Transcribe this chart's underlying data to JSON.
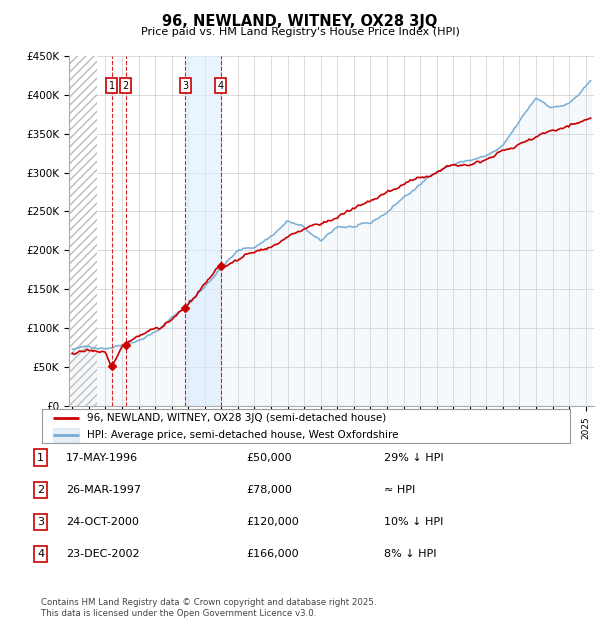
{
  "title": "96, NEWLAND, WITNEY, OX28 3JQ",
  "subtitle": "Price paid vs. HM Land Registry's House Price Index (HPI)",
  "ylim": [
    0,
    450000
  ],
  "yticks": [
    0,
    50000,
    100000,
    150000,
    200000,
    250000,
    300000,
    350000,
    400000,
    450000
  ],
  "ytick_labels": [
    "£0",
    "£50K",
    "£100K",
    "£150K",
    "£200K",
    "£250K",
    "£300K",
    "£350K",
    "£400K",
    "£450K"
  ],
  "hatch_end_year": 1995.5,
  "xmin": 1993.8,
  "xmax": 2025.5,
  "transactions": [
    {
      "num": 1,
      "date_str": "17-MAY-1996",
      "date_x": 1996.37,
      "price": 50000,
      "label": "29% ↓ HPI"
    },
    {
      "num": 2,
      "date_str": "26-MAR-1997",
      "date_x": 1997.23,
      "price": 78000,
      "label": "≈ HPI"
    },
    {
      "num": 3,
      "date_str": "24-OCT-2000",
      "date_x": 2000.81,
      "price": 120000,
      "label": "10% ↓ HPI"
    },
    {
      "num": 4,
      "date_str": "23-DEC-2002",
      "date_x": 2002.97,
      "price": 166000,
      "label": "8% ↓ HPI"
    }
  ],
  "line_color_red": "#cc0000",
  "line_color_blue": "#7aadd4",
  "vline_color": "#cc0000",
  "hpi_fill_color": "#cce0f0",
  "background_color": "#ffffff",
  "grid_color": "#cccccc",
  "legend_label_red": "96, NEWLAND, WITNEY, OX28 3JQ (semi-detached house)",
  "legend_label_blue": "HPI: Average price, semi-detached house, West Oxfordshire",
  "footnote": "Contains HM Land Registry data © Crown copyright and database right 2025.\nThis data is licensed under the Open Government Licence v3.0.",
  "box_color": "#cc0000",
  "hpi_anchors_x": [
    1994.0,
    1995.0,
    1996.0,
    1997.0,
    1998.0,
    1999.0,
    2000.0,
    2001.0,
    2002.0,
    2003.0,
    2004.0,
    2005.0,
    2006.0,
    2007.0,
    2008.0,
    2009.0,
    2010.0,
    2011.0,
    2012.0,
    2013.0,
    2014.0,
    2015.0,
    2016.0,
    2017.0,
    2018.0,
    2019.0,
    2020.0,
    2021.0,
    2022.0,
    2023.0,
    2024.0,
    2025.3
  ],
  "hpi_anchors_y": [
    73000,
    75000,
    77000,
    83000,
    92000,
    103000,
    120000,
    138000,
    162000,
    188000,
    208000,
    213000,
    228000,
    248000,
    238000,
    218000,
    238000,
    238000,
    238000,
    253000,
    273000,
    288000,
    308000,
    318000,
    323000,
    328000,
    338000,
    368000,
    398000,
    388000,
    393000,
    418000
  ],
  "red_anchors_x": [
    1994.0,
    1996.0,
    1996.37,
    1997.0,
    1997.23,
    2000.0,
    2000.81,
    2002.0,
    2002.97,
    2025.3
  ],
  "red_anchors_y": [
    68000,
    68000,
    50000,
    73000,
    78000,
    108000,
    120000,
    148000,
    166000,
    370000
  ]
}
